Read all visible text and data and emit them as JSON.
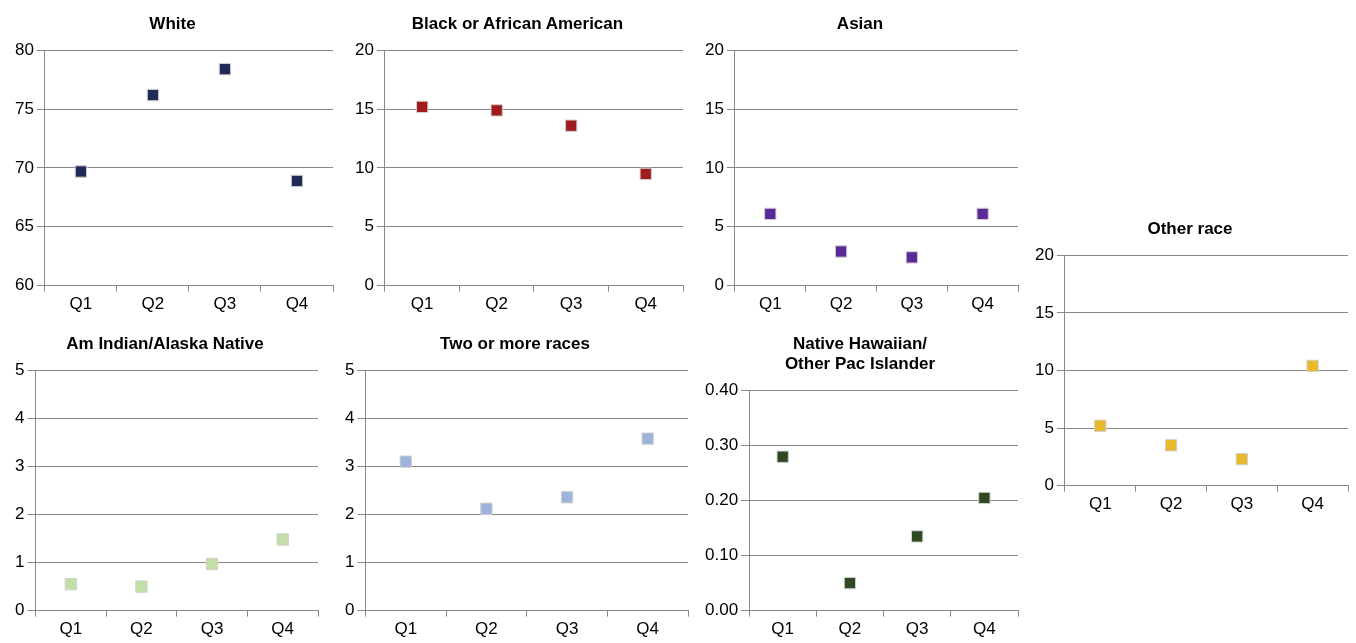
{
  "chart_data": [
    {
      "type": "scatter",
      "title": "White",
      "categories": [
        "Q1",
        "Q2",
        "Q3",
        "Q4"
      ],
      "values": [
        69.7,
        76.2,
        78.4,
        68.9
      ],
      "color": "#1f2a56",
      "ylim": [
        60,
        80
      ],
      "yticks": [
        60,
        65,
        70,
        75,
        80
      ],
      "grid": "y",
      "marker": "square"
    },
    {
      "type": "scatter",
      "title": "Black or African American",
      "categories": [
        "Q1",
        "Q2",
        "Q3",
        "Q4"
      ],
      "values": [
        15.2,
        14.9,
        13.6,
        9.5
      ],
      "color": "#a01c1c",
      "ylim": [
        0,
        20
      ],
      "yticks": [
        0,
        5,
        10,
        15,
        20
      ],
      "grid": "y",
      "marker": "square"
    },
    {
      "type": "scatter",
      "title": "Asian",
      "categories": [
        "Q1",
        "Q2",
        "Q3",
        "Q4"
      ],
      "values": [
        6.1,
        2.9,
        2.4,
        6.1
      ],
      "color": "#5b2a9a",
      "ylim": [
        0,
        20
      ],
      "yticks": [
        0,
        5,
        10,
        15,
        20
      ],
      "grid": "y",
      "marker": "square"
    },
    {
      "type": "scatter",
      "title": "Other race",
      "categories": [
        "Q1",
        "Q2",
        "Q3",
        "Q4"
      ],
      "values": [
        5.2,
        3.5,
        2.3,
        10.4
      ],
      "color": "#e8b92a",
      "ylim": [
        0,
        20
      ],
      "yticks": [
        0,
        5,
        10,
        15,
        20
      ],
      "grid": "y",
      "marker": "square"
    },
    {
      "type": "scatter",
      "title": "Am Indian/Alaska Native",
      "categories": [
        "Q1",
        "Q2",
        "Q3",
        "Q4"
      ],
      "values": [
        0.55,
        0.5,
        0.97,
        1.48
      ],
      "color": "#c3dea6",
      "ylim": [
        0,
        5
      ],
      "yticks": [
        0,
        1,
        2,
        3,
        4,
        5
      ],
      "grid": "y",
      "marker": "square"
    },
    {
      "type": "scatter",
      "title": "Two or more races",
      "categories": [
        "Q1",
        "Q2",
        "Q3",
        "Q4"
      ],
      "values": [
        3.1,
        2.12,
        2.36,
        3.58
      ],
      "color": "#9db3db",
      "ylim": [
        0,
        5
      ],
      "yticks": [
        0,
        1,
        2,
        3,
        4,
        5
      ],
      "grid": "y",
      "marker": "square"
    },
    {
      "type": "scatter",
      "title": "Native Hawaiian/\nOther Pac Islander",
      "categories": [
        "Q1",
        "Q2",
        "Q3",
        "Q4"
      ],
      "values": [
        0.28,
        0.05,
        0.135,
        0.205
      ],
      "color": "#2f4a22",
      "ylim": [
        0,
        0.4
      ],
      "yticks": [
        {
          "value": 0,
          "label": "0.00"
        },
        {
          "value": 0.1,
          "label": "0.10"
        },
        {
          "value": 0.2,
          "label": "0.20"
        },
        {
          "value": 0.3,
          "label": "0.30"
        },
        {
          "value": 0.4,
          "label": "0.40"
        }
      ],
      "grid": "y",
      "marker": "square"
    }
  ]
}
